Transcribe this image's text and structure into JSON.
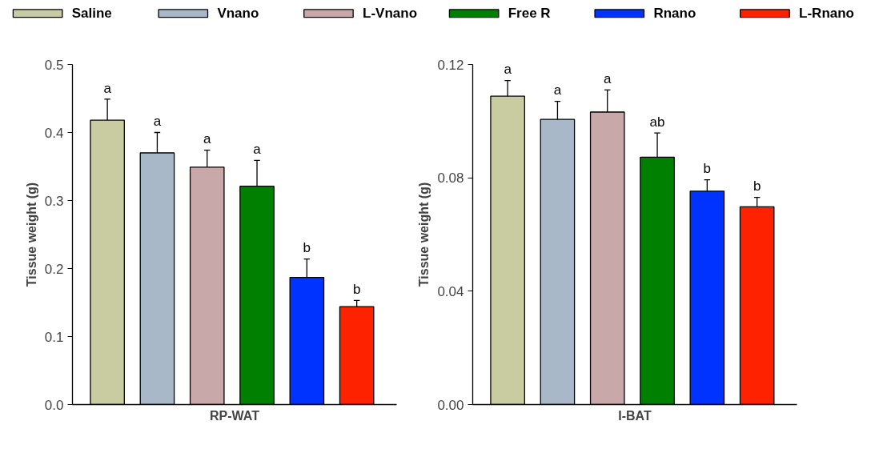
{
  "chart_data": [
    {
      "type": "bar",
      "xlabel": "RP-WAT",
      "ylabel": "Tissue weight (g)",
      "categories": [
        null,
        null,
        null,
        null,
        null,
        null
      ],
      "legend": "top",
      "ylim": [
        0,
        0.5
      ],
      "yticks": [
        {
          "value": 0,
          "label": "0.0"
        },
        0.1,
        0.2,
        0.3,
        0.4,
        0.5
      ],
      "tick_labels": "y",
      "series": [
        {
          "name": "Saline",
          "color": "#c8cca0",
          "values": [
            0.418,
            null,
            null,
            null,
            null,
            null
          ],
          "errors": [
            [
              0.418,
              0.449
            ],
            null,
            null,
            null,
            null,
            null
          ]
        },
        {
          "name": "Vnano",
          "color": "#a8b8c8",
          "values": [
            null,
            0.37,
            null,
            null,
            null,
            null
          ],
          "errors": [
            null,
            [
              0.37,
              0.4
            ],
            null,
            null,
            null,
            null
          ]
        },
        {
          "name": "L-Vnano",
          "color": "#c8a8a8",
          "values": [
            null,
            null,
            0.349,
            null,
            null,
            null
          ],
          "errors": [
            null,
            null,
            [
              0.349,
              0.374
            ],
            null,
            null,
            null
          ]
        },
        {
          "name": "Free R",
          "color": "#008000",
          "values": [
            null,
            null,
            null,
            0.321,
            null,
            null
          ],
          "errors": [
            null,
            null,
            null,
            [
              0.321,
              0.359
            ],
            null,
            null
          ]
        },
        {
          "name": "Rnano",
          "color": "#0033ff",
          "values": [
            null,
            null,
            null,
            null,
            0.187,
            null
          ],
          "errors": [
            null,
            null,
            null,
            null,
            [
              0.187,
              0.214
            ],
            null
          ]
        },
        {
          "name": "L-Rnano",
          "color": "#ff2200",
          "values": [
            null,
            null,
            null,
            null,
            null,
            0.144
          ],
          "errors": [
            null,
            null,
            null,
            null,
            null,
            [
              0.144,
              0.153
            ]
          ]
        }
      ],
      "annotations": [
        "a",
        "a",
        "a",
        "a",
        "b",
        "b"
      ]
    },
    {
      "type": "bar",
      "xlabel": "I-BAT",
      "ylabel": "Tissue weight (g)",
      "categories": [
        null,
        null,
        null,
        null,
        null,
        null
      ],
      "ylim": [
        0,
        0.12
      ],
      "yticks": [
        {
          "value": 0,
          "label": "0.00"
        },
        0.04,
        0.08,
        0.12
      ],
      "tick_labels": "y",
      "series": [
        {
          "color": "#c8cca0",
          "values": [
            0.1088,
            null,
            null,
            null,
            null,
            null
          ],
          "errors": [
            [
              0.1088,
              0.1143
            ],
            null,
            null,
            null,
            null,
            null
          ]
        },
        {
          "color": "#a8b8c8",
          "values": [
            null,
            0.1006,
            null,
            null,
            null,
            null
          ],
          "errors": [
            null,
            [
              0.1006,
              0.107
            ],
            null,
            null,
            null,
            null
          ]
        },
        {
          "color": "#c8a8a8",
          "values": [
            null,
            null,
            0.1032,
            null,
            null,
            null
          ],
          "errors": [
            null,
            null,
            [
              0.1032,
              0.111
            ],
            null,
            null,
            null
          ]
        },
        {
          "color": "#008000",
          "values": [
            null,
            null,
            null,
            0.0873,
            null,
            null
          ],
          "errors": [
            null,
            null,
            null,
            [
              0.0873,
              0.0958
            ],
            null,
            null
          ]
        },
        {
          "color": "#0033ff",
          "values": [
            null,
            null,
            null,
            null,
            0.0753,
            null
          ],
          "errors": [
            null,
            null,
            null,
            null,
            [
              0.0753,
              0.0793
            ],
            null
          ]
        },
        {
          "color": "#ff2200",
          "values": [
            null,
            null,
            null,
            null,
            null,
            0.0698
          ],
          "errors": [
            null,
            null,
            null,
            null,
            null,
            [
              0.0698,
              0.0731
            ]
          ]
        }
      ],
      "annotations": [
        "a",
        "a",
        "a",
        "ab",
        "b",
        "b"
      ]
    }
  ]
}
